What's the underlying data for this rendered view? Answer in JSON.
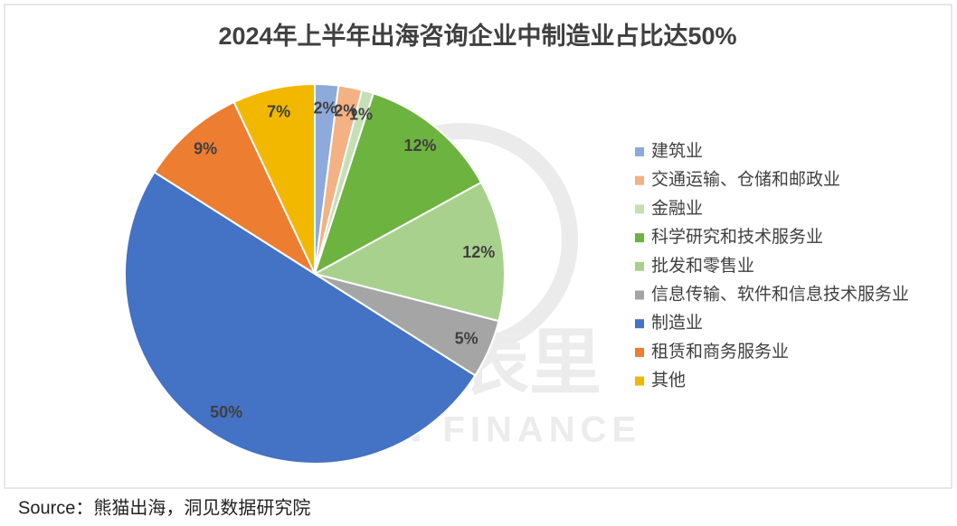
{
  "chart_data": {
    "type": "pie",
    "title": "2024年上半年出海咨询企业中制造业占比达50%",
    "categories": [
      "建筑业",
      "交通运输、仓储和邮政业",
      "金融业",
      "科学研究和技术服务业",
      "批发和零售业",
      "信息传输、软件和信息技术服务业",
      "制造业",
      "租赁和商务服务业",
      "其他"
    ],
    "values": [
      2,
      2,
      1,
      12,
      12,
      5,
      50,
      9,
      7
    ],
    "value_labels": [
      "2%",
      "2%",
      "1%",
      "12%",
      "12%",
      "5%",
      "50%",
      "9%",
      "7%"
    ],
    "colors": [
      "#8eaadb",
      "#f4b183",
      "#c5e0b4",
      "#6db33f",
      "#a9d18e",
      "#a5a5a5",
      "#4472c4",
      "#ed7d31",
      "#f2b800"
    ],
    "legend": "right",
    "watermark": [
      "表外表里",
      "VISION FINANCE"
    ],
    "source": "Source：熊猫出海，洞见数据研究院"
  }
}
